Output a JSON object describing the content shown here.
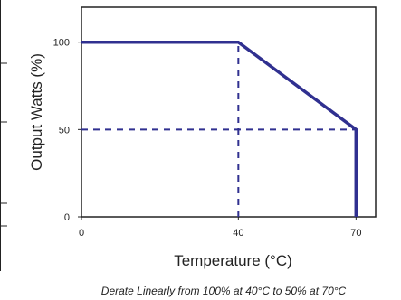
{
  "chart_data": {
    "type": "line",
    "series": [
      {
        "x": [
          0,
          40,
          70,
          70
        ],
        "y": [
          100,
          100,
          50,
          0
        ]
      }
    ],
    "reference_lines": [
      {
        "orientation": "vertical",
        "x": 40,
        "y_from": 0,
        "y_to": 100
      },
      {
        "orientation": "horizontal",
        "y": 50,
        "x_from": 0,
        "x_to": 70
      }
    ],
    "xlim": [
      0,
      75
    ],
    "ylim": [
      0,
      120
    ],
    "x_ticks": [
      0,
      40,
      70
    ],
    "y_ticks": [
      0,
      50,
      100
    ],
    "xlabel": "Temperature (°C)",
    "ylabel": "Output Watts (%)",
    "caption": "Derate Linearly from 100% at 40°C to 50% at 70°C",
    "grid": false,
    "colors": {
      "line": "#303090",
      "axis": "#222222",
      "text": "#222222"
    }
  }
}
